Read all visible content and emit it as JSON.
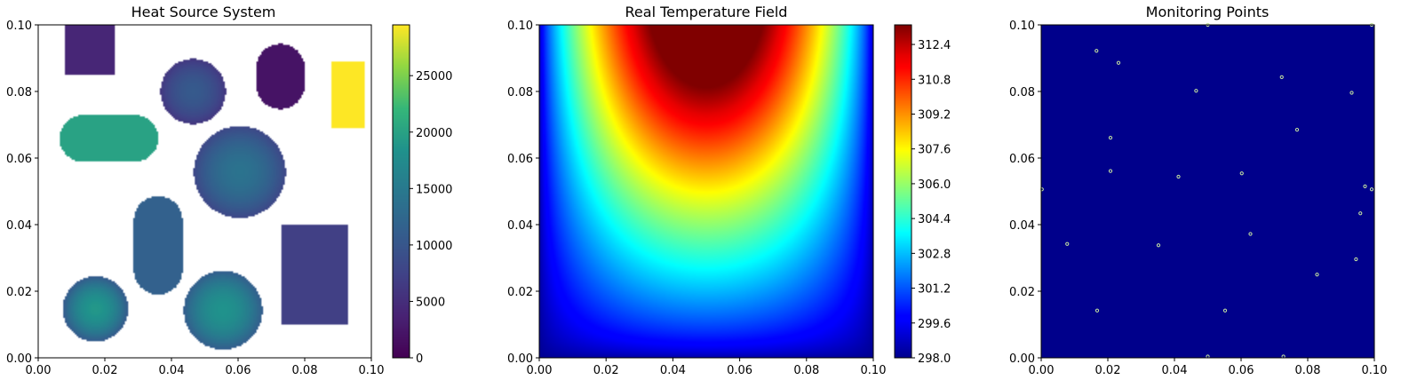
{
  "chart_data": [
    {
      "type": "heatmap",
      "title": "Heat Source System",
      "xlim": [
        0,
        0.1
      ],
      "ylim": [
        0,
        0.1
      ],
      "xticks": [
        "0.00",
        "0.02",
        "0.04",
        "0.06",
        "0.08",
        "0.10"
      ],
      "yticks": [
        "0.00",
        "0.02",
        "0.04",
        "0.06",
        "0.08",
        "0.10"
      ],
      "colormap": "viridis",
      "colorbar": {
        "min": 0,
        "max": 29500,
        "ticks": [
          "0",
          "5000",
          "10000",
          "15000",
          "20000",
          "25000"
        ],
        "tick_values": [
          0,
          5000,
          10000,
          15000,
          20000,
          25000
        ]
      },
      "sources": [
        {
          "shape": "rect",
          "x0": 0.008,
          "x1": 0.023,
          "y0": 0.085,
          "y1": 0.1,
          "power": 4000
        },
        {
          "shape": "circle",
          "cx": 0.0465,
          "cy": 0.08,
          "r": 0.0098,
          "power_center": 10500,
          "power_edge": 6000
        },
        {
          "shape": "stadium_v",
          "cx": 0.0727,
          "cy": 0.0845,
          "half_w": 0.0073,
          "half_h": 0.0098,
          "power": 2000
        },
        {
          "shape": "rect",
          "x0": 0.088,
          "x1": 0.098,
          "y0": 0.069,
          "y1": 0.089,
          "power": 29500
        },
        {
          "shape": "stadium_h",
          "cx": 0.0212,
          "cy": 0.0659,
          "half_w": 0.0148,
          "half_h": 0.007,
          "power": 20000
        },
        {
          "shape": "circle",
          "cx": 0.0605,
          "cy": 0.0558,
          "r": 0.0138,
          "power_center": 14000,
          "power_edge": 8000
        },
        {
          "shape": "stadium_v",
          "cx": 0.036,
          "cy": 0.0338,
          "half_w": 0.0073,
          "half_h": 0.0148,
          "power": 11500
        },
        {
          "shape": "rect",
          "x0": 0.073,
          "x1": 0.093,
          "y0": 0.01,
          "y1": 0.04,
          "power": 7000
        },
        {
          "shape": "circle",
          "cx": 0.0172,
          "cy": 0.0147,
          "r": 0.0098,
          "power_center": 19000,
          "power_edge": 10500
        },
        {
          "shape": "circle",
          "cx": 0.0555,
          "cy": 0.0143,
          "r": 0.0118,
          "power_center": 18500,
          "power_edge": 11000
        }
      ]
    },
    {
      "type": "heatmap",
      "title": "Real Temperature Field",
      "xlim": [
        0,
        0.1
      ],
      "ylim": [
        0,
        0.1
      ],
      "xticks": [
        "0.00",
        "0.02",
        "0.04",
        "0.06",
        "0.08",
        "0.10"
      ],
      "yticks": [
        "0.00",
        "0.02",
        "0.04",
        "0.06",
        "0.08",
        "0.10"
      ],
      "colormap": "jet",
      "colorbar": {
        "min": 298.0,
        "max": 313.3,
        "ticks": [
          "298.0",
          "299.6",
          "301.2",
          "302.8",
          "304.4",
          "306.0",
          "307.6",
          "309.2",
          "310.8",
          "312.4"
        ],
        "tick_values": [
          298.0,
          299.6,
          301.2,
          302.8,
          304.4,
          306.0,
          307.6,
          309.2,
          310.8,
          312.4
        ]
      },
      "field": {
        "min": 298.0,
        "max": 313.3,
        "hotspot_x": 0.05,
        "hotspot_y": 0.1
      }
    },
    {
      "type": "scatter",
      "title": "Monitoring Points",
      "xlim": [
        0,
        0.1
      ],
      "ylim": [
        0,
        0.1
      ],
      "xticks": [
        "0.00",
        "0.02",
        "0.04",
        "0.06",
        "0.08",
        "0.10"
      ],
      "yticks": [
        "0.00",
        "0.02",
        "0.04",
        "0.06",
        "0.08",
        "0.10"
      ],
      "background": "#00008b",
      "point_color": "#c8e6a0",
      "points": [
        {
          "x": 0.05,
          "y": 0.1
        },
        {
          "x": 0.0992,
          "y": 0.1
        },
        {
          "x": 0.0166,
          "y": 0.0922
        },
        {
          "x": 0.0232,
          "y": 0.0886
        },
        {
          "x": 0.0722,
          "y": 0.0843
        },
        {
          "x": 0.0465,
          "y": 0.0802
        },
        {
          "x": 0.0932,
          "y": 0.0796
        },
        {
          "x": 0.0768,
          "y": 0.0685
        },
        {
          "x": 0.0208,
          "y": 0.0661
        },
        {
          "x": 0.0208,
          "y": 0.0561
        },
        {
          "x": 0.0602,
          "y": 0.0554
        },
        {
          "x": 0.0412,
          "y": 0.0544
        },
        {
          "x": 0.0002,
          "y": 0.0506
        },
        {
          "x": 0.0972,
          "y": 0.0515
        },
        {
          "x": 0.0992,
          "y": 0.0506
        },
        {
          "x": 0.0958,
          "y": 0.0434
        },
        {
          "x": 0.0628,
          "y": 0.0372
        },
        {
          "x": 0.0078,
          "y": 0.0342
        },
        {
          "x": 0.0352,
          "y": 0.0338
        },
        {
          "x": 0.0945,
          "y": 0.0296
        },
        {
          "x": 0.0828,
          "y": 0.025
        },
        {
          "x": 0.0168,
          "y": 0.0142
        },
        {
          "x": 0.0552,
          "y": 0.0142
        },
        {
          "x": 0.05,
          "y": 0.0004
        },
        {
          "x": 0.0727,
          "y": 0.0004
        }
      ]
    }
  ]
}
